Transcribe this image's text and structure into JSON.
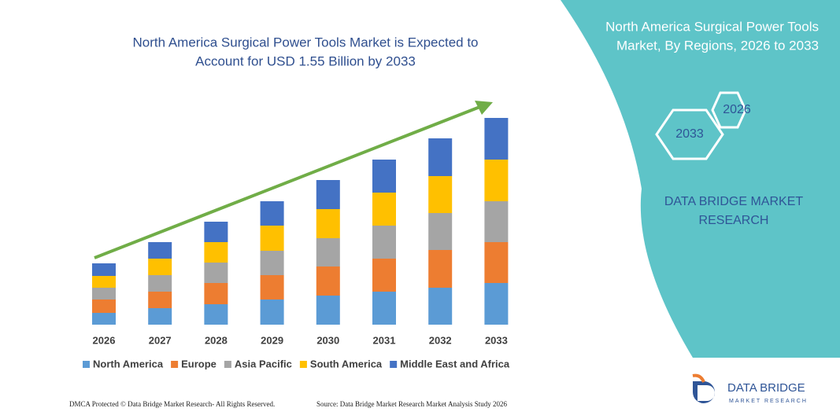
{
  "chart_data": {
    "type": "stacked-bar",
    "title": [
      "North America Surgical Power Tools Market is Expected to",
      "Account for USD 1.55 Billion by 2033"
    ],
    "categories": [
      "2026",
      "2027",
      "2028",
      "2029",
      "2030",
      "2031",
      "2032",
      "2033"
    ],
    "series": [
      {
        "name": "North America",
        "color": "#5b9bd5",
        "values": [
          15,
          21,
          26,
          32,
          37,
          42,
          47,
          53
        ]
      },
      {
        "name": "Europe",
        "color": "#ed7d31",
        "values": [
          17,
          21,
          27,
          31,
          37,
          42,
          48,
          52
        ]
      },
      {
        "name": "Asia Pacific",
        "color": "#a5a5a5",
        "values": [
          15,
          21,
          26,
          31,
          36,
          42,
          47,
          52
        ]
      },
      {
        "name": "South America",
        "color": "#ffc000",
        "values": [
          15,
          21,
          26,
          32,
          37,
          42,
          47,
          53
        ]
      },
      {
        "name": "Middle East and Africa",
        "color": "#4472c4",
        "values": [
          16,
          21,
          26,
          31,
          37,
          42,
          48,
          53
        ]
      }
    ]
  },
  "panel": {
    "title": [
      "North America Surgical Power Tools",
      "Market, By Regions, 2026 to 2033"
    ],
    "hexagons": [
      "2026",
      "2033"
    ],
    "brand": [
      "DATA BRIDGE MARKET",
      "RESEARCH"
    ]
  },
  "logo": {
    "name": "DATA BRIDGE",
    "tagline": "MARKET RESEARCH"
  },
  "footer": {
    "left": "DMCA Protected © Data Bridge Market Research- All Rights Reserved.",
    "right": "Source: Data Bridge Market Research  Market Analysis Study 2026"
  }
}
